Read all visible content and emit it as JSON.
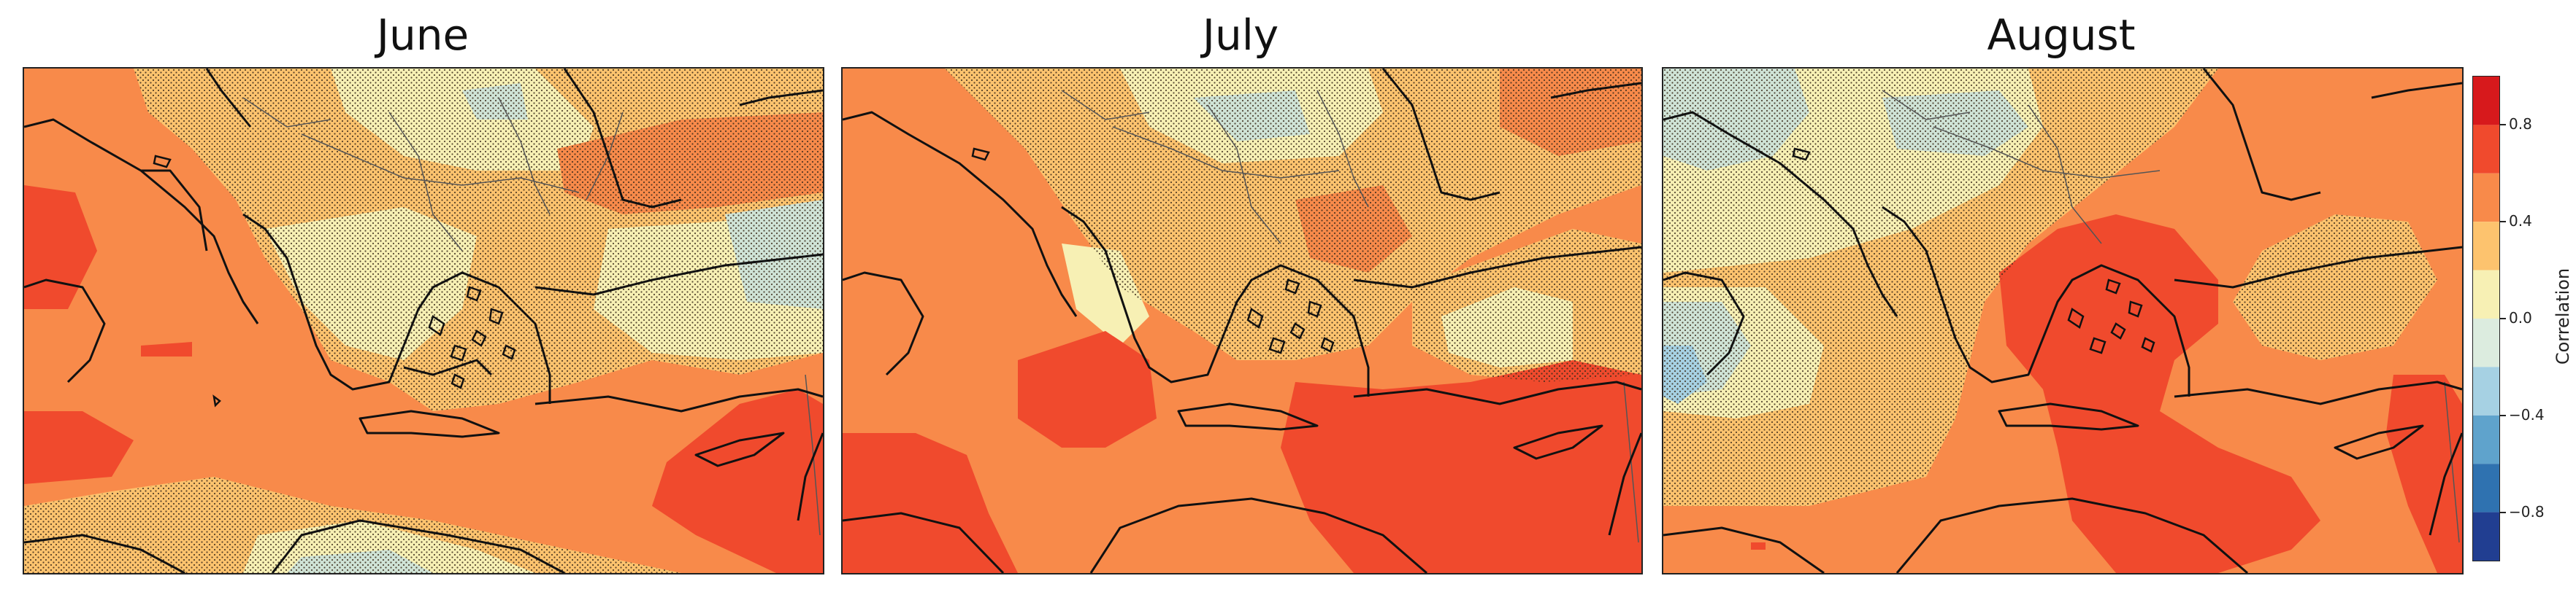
{
  "panels": [
    {
      "title": "June"
    },
    {
      "title": "July"
    },
    {
      "title": "August"
    }
  ],
  "colorbar": {
    "title": "Correlation",
    "ticks": [
      "0.8",
      "0.4",
      "0.0",
      "−0.4",
      "−0.8"
    ],
    "levels": [
      {
        "from": 0.8,
        "to": 1.0,
        "color": "#d7191c"
      },
      {
        "from": 0.6,
        "to": 0.8,
        "color": "#f04a2d"
      },
      {
        "from": 0.4,
        "to": 0.6,
        "color": "#f88a4a"
      },
      {
        "from": 0.2,
        "to": 0.4,
        "color": "#fdc36e"
      },
      {
        "from": 0.0,
        "to": 0.2,
        "color": "#f7f0b4"
      },
      {
        "from": -0.2,
        "to": 0.0,
        "color": "#dcecdf"
      },
      {
        "from": -0.4,
        "to": -0.2,
        "color": "#a6d1e3"
      },
      {
        "from": -0.6,
        "to": -0.4,
        "color": "#5fa3cc"
      },
      {
        "from": -0.8,
        "to": -0.6,
        "color": "#2f72b0"
      },
      {
        "from": -1.0,
        "to": -0.8,
        "color": "#213e91"
      }
    ]
  },
  "colors": {
    "strong_positive": "#f04a2d",
    "positive": "#f88a4a",
    "weak_positive": "#fdc36e",
    "near_zero": "#f7f0b4",
    "weak_negative": "#cfe3d6",
    "hatch": "#3a2a1a",
    "coastline": "#111111",
    "border": "#666666"
  }
}
